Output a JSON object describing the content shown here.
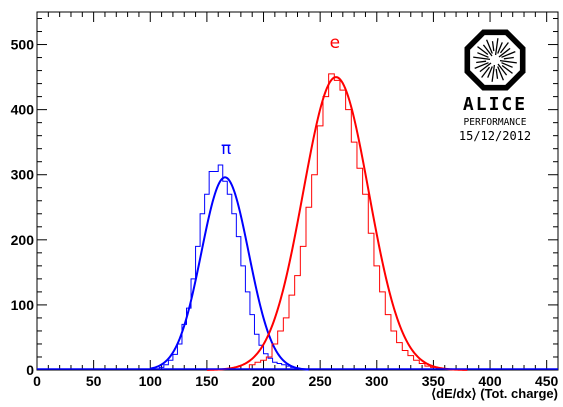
{
  "chart_data": {
    "type": "line",
    "title": "",
    "xlabel": "⟨dE/dx⟩ (Tot. charge)",
    "ylabel": "",
    "xlim": [
      0,
      460
    ],
    "ylim": [
      0,
      550
    ],
    "x_ticks": [
      0,
      50,
      100,
      150,
      200,
      250,
      300,
      350,
      400,
      450
    ],
    "y_ticks": [
      0,
      100,
      200,
      300,
      400,
      500
    ],
    "grid": false,
    "legend": "none",
    "series": [
      {
        "name": "π",
        "color": "#0000ff",
        "histogram": {
          "x": [
            110,
            114,
            118,
            122,
            126,
            130,
            134,
            138,
            142,
            146,
            150,
            154,
            158,
            162,
            166,
            170,
            174,
            178,
            182,
            186,
            190,
            194,
            198,
            202,
            206,
            210,
            214,
            218,
            222,
            226,
            230
          ],
          "values": [
            4,
            8,
            15,
            24,
            40,
            70,
            95,
            140,
            190,
            240,
            270,
            305,
            305,
            315,
            290,
            270,
            240,
            205,
            160,
            120,
            85,
            55,
            38,
            25,
            18,
            12,
            10,
            8,
            6,
            4,
            3
          ]
        },
        "fit": {
          "kind": "gaussian",
          "mean": 166,
          "sigma": 21,
          "amplitude": 296,
          "range": [
            100,
            240
          ]
        }
      },
      {
        "name": "e",
        "color": "#ff0000",
        "histogram": {
          "x": [
            190,
            195,
            200,
            205,
            210,
            215,
            220,
            225,
            230,
            235,
            240,
            245,
            250,
            255,
            260,
            265,
            270,
            275,
            280,
            285,
            290,
            295,
            300,
            305,
            310,
            315,
            320,
            325,
            330,
            335,
            340,
            345,
            350,
            355,
            360
          ],
          "values": [
            8,
            12,
            15,
            20,
            40,
            60,
            80,
            115,
            145,
            190,
            250,
            300,
            375,
            420,
            455,
            445,
            430,
            400,
            350,
            310,
            270,
            210,
            160,
            120,
            85,
            60,
            42,
            30,
            22,
            15,
            10,
            6,
            4,
            3,
            2
          ]
        },
        "fit": {
          "kind": "gaussian",
          "mean": 264,
          "sigma": 29,
          "amplitude": 450,
          "range": [
            150,
            380
          ]
        }
      }
    ],
    "annotations": [
      {
        "text": "π",
        "x": 167,
        "y": 332,
        "color": "#0000ff"
      },
      {
        "text": "e",
        "x": 263,
        "y": 495,
        "color": "#ff0000"
      }
    ],
    "logo": {
      "name": "alice-logo-icon",
      "label": "ALICE",
      "subtitle": "PERFORMANCE",
      "date": "15/12/2012"
    }
  }
}
